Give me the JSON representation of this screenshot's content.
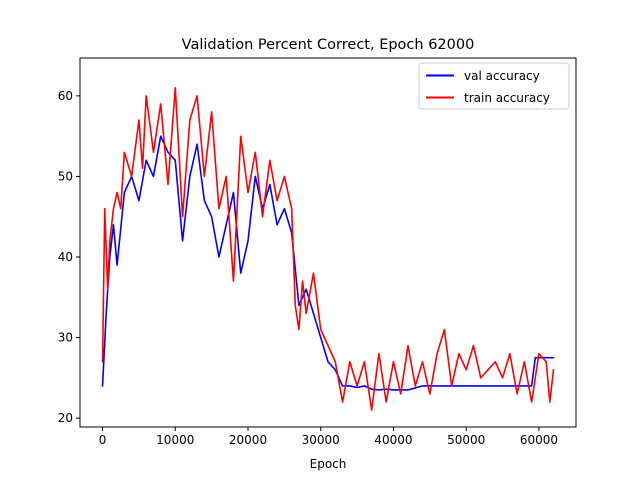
{
  "chart_data": {
    "type": "line",
    "title": "Validation Percent Correct, Epoch 62000",
    "xlabel": "Epoch",
    "ylabel": "",
    "xlim": [
      -3100,
      65100
    ],
    "ylim": [
      18.9,
      64.7
    ],
    "xticks": [
      0,
      10000,
      20000,
      30000,
      40000,
      50000,
      60000
    ],
    "yticks": [
      20,
      30,
      40,
      50,
      60
    ],
    "grid": false,
    "legend_position": "top-right",
    "series": [
      {
        "name": "val accuracy",
        "color": "#0000ff",
        "points": [
          [
            0,
            24.0
          ],
          [
            500,
            33.0
          ],
          [
            1000,
            40.0
          ],
          [
            1500,
            44.0
          ],
          [
            2000,
            39.0
          ],
          [
            3000,
            48.0
          ],
          [
            4000,
            50.0
          ],
          [
            5000,
            47.0
          ],
          [
            6000,
            52.0
          ],
          [
            7000,
            50.0
          ],
          [
            8000,
            55.0
          ],
          [
            9000,
            53.0
          ],
          [
            10000,
            52.0
          ],
          [
            11000,
            42.0
          ],
          [
            12000,
            50.0
          ],
          [
            13000,
            54.0
          ],
          [
            14000,
            47.0
          ],
          [
            15000,
            45.0
          ],
          [
            16000,
            40.0
          ],
          [
            17000,
            44.0
          ],
          [
            18000,
            48.0
          ],
          [
            19000,
            38.0
          ],
          [
            20000,
            42.0
          ],
          [
            21000,
            50.0
          ],
          [
            22000,
            46.0
          ],
          [
            23000,
            49.0
          ],
          [
            24000,
            44.0
          ],
          [
            25000,
            46.0
          ],
          [
            26000,
            43.0
          ],
          [
            27000,
            34.0
          ],
          [
            28000,
            36.0
          ],
          [
            29000,
            33.0
          ],
          [
            30000,
            30.0
          ],
          [
            31000,
            27.0
          ],
          [
            32000,
            26.0
          ],
          [
            33000,
            24.0
          ],
          [
            34000,
            24.0
          ],
          [
            35000,
            23.8
          ],
          [
            36000,
            24.0
          ],
          [
            37000,
            23.6
          ],
          [
            38000,
            23.5
          ],
          [
            39000,
            23.6
          ],
          [
            40000,
            23.5
          ],
          [
            42000,
            23.5
          ],
          [
            44000,
            24.0
          ],
          [
            46000,
            24.0
          ],
          [
            48000,
            24.0
          ],
          [
            50000,
            24.0
          ],
          [
            52000,
            24.0
          ],
          [
            54000,
            24.0
          ],
          [
            56000,
            24.0
          ],
          [
            58000,
            24.0
          ],
          [
            59000,
            24.0
          ],
          [
            59500,
            27.5
          ],
          [
            61000,
            27.5
          ],
          [
            62000,
            27.5
          ]
        ]
      },
      {
        "name": "train accuracy",
        "color": "#ff0000",
        "points": [
          [
            0,
            27.0
          ],
          [
            300,
            46.0
          ],
          [
            700,
            36.0
          ],
          [
            1000,
            42.0
          ],
          [
            1500,
            46.0
          ],
          [
            2000,
            48.0
          ],
          [
            2500,
            46.0
          ],
          [
            3000,
            53.0
          ],
          [
            4000,
            50.0
          ],
          [
            5000,
            57.0
          ],
          [
            5500,
            51.0
          ],
          [
            6000,
            60.0
          ],
          [
            7000,
            53.0
          ],
          [
            8000,
            59.0
          ],
          [
            9000,
            49.0
          ],
          [
            10000,
            61.0
          ],
          [
            10500,
            53.0
          ],
          [
            11000,
            45.0
          ],
          [
            12000,
            57.0
          ],
          [
            13000,
            60.0
          ],
          [
            14000,
            50.0
          ],
          [
            15000,
            58.0
          ],
          [
            16000,
            46.0
          ],
          [
            17000,
            50.0
          ],
          [
            18000,
            37.0
          ],
          [
            19000,
            55.0
          ],
          [
            20000,
            48.0
          ],
          [
            21000,
            53.0
          ],
          [
            22000,
            45.0
          ],
          [
            23000,
            52.0
          ],
          [
            24000,
            47.0
          ],
          [
            25000,
            50.0
          ],
          [
            26000,
            46.0
          ],
          [
            26500,
            34.0
          ],
          [
            27000,
            31.0
          ],
          [
            27500,
            37.0
          ],
          [
            28000,
            33.0
          ],
          [
            29000,
            38.0
          ],
          [
            30000,
            31.0
          ],
          [
            31000,
            29.0
          ],
          [
            32000,
            27.0
          ],
          [
            33000,
            22.0
          ],
          [
            34000,
            27.0
          ],
          [
            35000,
            24.0
          ],
          [
            36000,
            27.0
          ],
          [
            37000,
            21.0
          ],
          [
            38000,
            28.0
          ],
          [
            39000,
            22.0
          ],
          [
            40000,
            27.0
          ],
          [
            41000,
            23.0
          ],
          [
            42000,
            29.0
          ],
          [
            43000,
            24.0
          ],
          [
            44000,
            27.0
          ],
          [
            45000,
            23.0
          ],
          [
            46000,
            28.0
          ],
          [
            47000,
            31.0
          ],
          [
            48000,
            24.0
          ],
          [
            49000,
            28.0
          ],
          [
            50000,
            26.0
          ],
          [
            51000,
            29.0
          ],
          [
            52000,
            25.0
          ],
          [
            53000,
            26.0
          ],
          [
            54000,
            27.0
          ],
          [
            55000,
            25.0
          ],
          [
            56000,
            28.0
          ],
          [
            57000,
            23.0
          ],
          [
            58000,
            27.0
          ],
          [
            59000,
            22.0
          ],
          [
            60000,
            28.0
          ],
          [
            61000,
            27.0
          ],
          [
            61500,
            22.0
          ],
          [
            62000,
            26.0
          ]
        ]
      }
    ]
  }
}
